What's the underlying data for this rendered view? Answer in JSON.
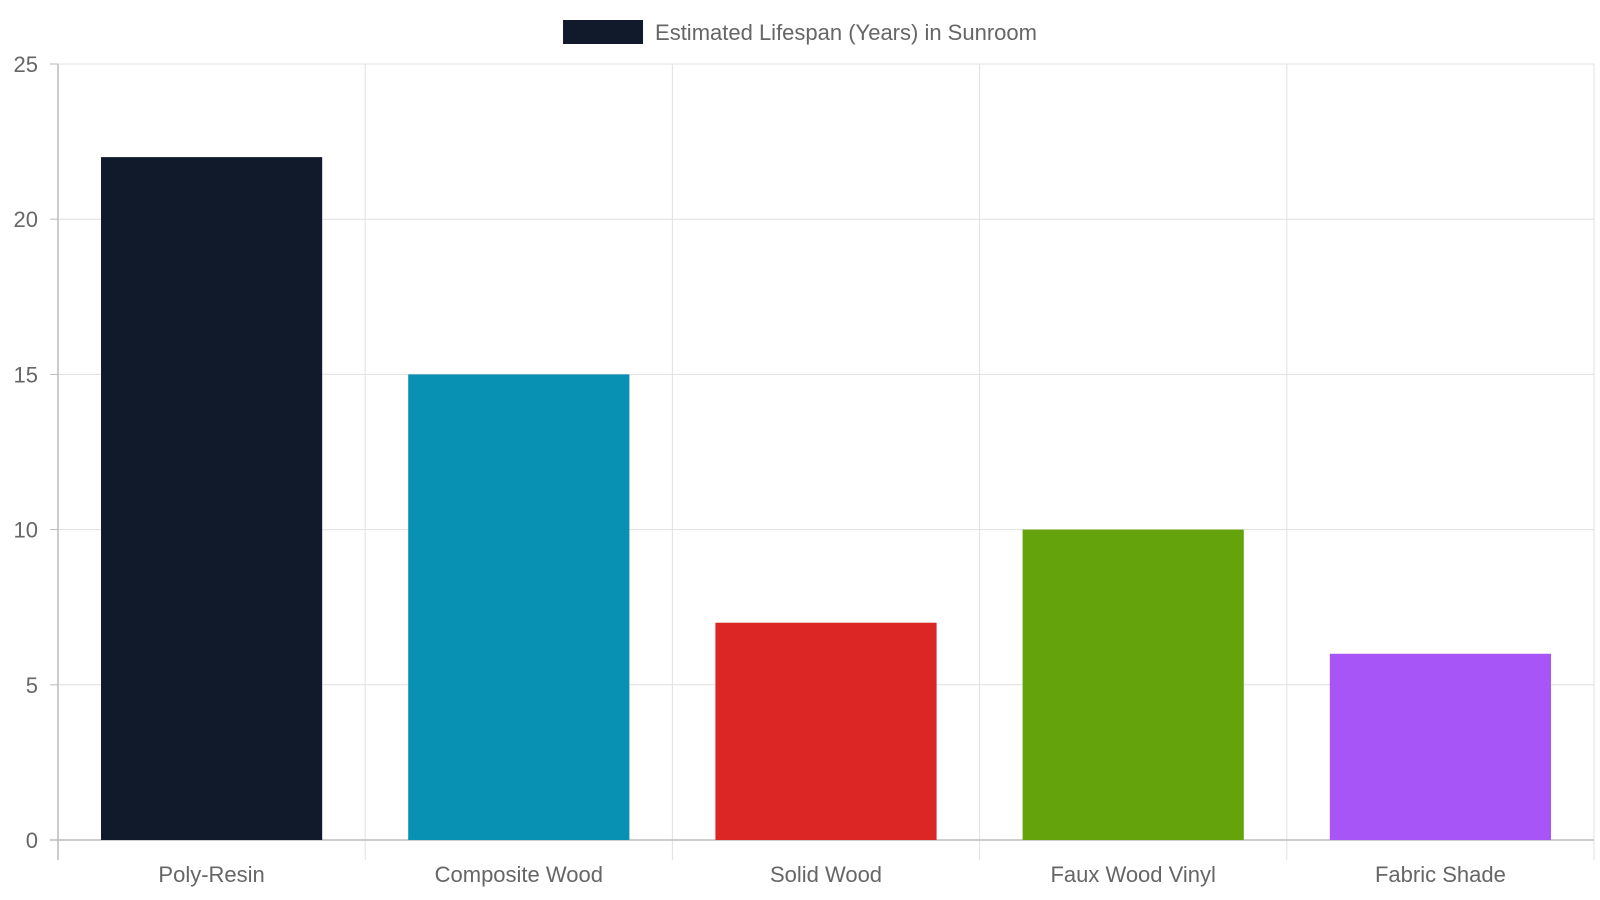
{
  "chart_data": {
    "type": "bar",
    "categories": [
      "Poly-Resin",
      "Composite Wood",
      "Solid Wood",
      "Faux Wood Vinyl",
      "Fabric Shade"
    ],
    "series": [
      {
        "name": "Estimated Lifespan (Years) in Sunroom",
        "values": [
          22,
          15,
          7,
          10,
          6
        ],
        "colors": [
          "#111a2b",
          "#0891b2",
          "#dc2626",
          "#65a30d",
          "#a855f7"
        ]
      }
    ],
    "ylim": [
      0,
      25
    ],
    "yticks": [
      0,
      5,
      10,
      15,
      20,
      25
    ],
    "grid": true,
    "legend_position": "top-center",
    "legend_swatch_color": "#111a2b"
  }
}
